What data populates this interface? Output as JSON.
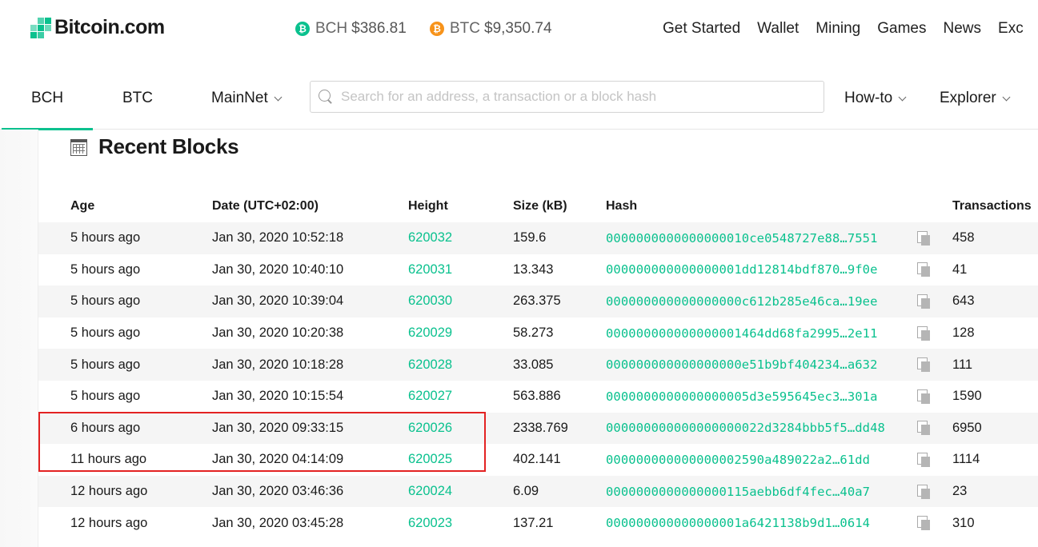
{
  "brand": {
    "name": "Bitcoin.com",
    "accent": "#0ac18e"
  },
  "prices": [
    {
      "symbol": "BCH",
      "value": "$386.81",
      "color": "#0ac18e",
      "glyph": "₿"
    },
    {
      "symbol": "BTC",
      "value": "$9,350.74",
      "color": "#f7931a",
      "glyph": "₿"
    }
  ],
  "topnav": [
    "Get Started",
    "Wallet",
    "Mining",
    "Games",
    "News",
    "Exc"
  ],
  "subnav": {
    "tabs": [
      "BCH",
      "BTC"
    ],
    "network": "MainNet",
    "search_placeholder": "Search for an address, a transaction or a block hash",
    "menus": [
      "How-to",
      "Explorer"
    ]
  },
  "page": {
    "title": "Recent Blocks"
  },
  "table": {
    "headers": {
      "age": "Age",
      "date": "Date (UTC+02:00)",
      "height": "Height",
      "size": "Size (kB)",
      "hash": "Hash",
      "tx": "Transactions"
    },
    "rows": [
      {
        "age": "5 hours ago",
        "date": "Jan 30, 2020 10:52:18",
        "height": "620032",
        "size": "159.6",
        "hash": "0000000000000000010ce0548727e88…7551",
        "tx": "458"
      },
      {
        "age": "5 hours ago",
        "date": "Jan 30, 2020 10:40:10",
        "height": "620031",
        "size": "13.343",
        "hash": "000000000000000001dd12814bdf870…9f0e",
        "tx": "41"
      },
      {
        "age": "5 hours ago",
        "date": "Jan 30, 2020 10:39:04",
        "height": "620030",
        "size": "263.375",
        "hash": "000000000000000000c612b285e46ca…19ee",
        "tx": "643"
      },
      {
        "age": "5 hours ago",
        "date": "Jan 30, 2020 10:20:38",
        "height": "620029",
        "size": "58.273",
        "hash": "000000000000000001464dd68fa2995…2e11",
        "tx": "128"
      },
      {
        "age": "5 hours ago",
        "date": "Jan 30, 2020 10:18:28",
        "height": "620028",
        "size": "33.085",
        "hash": "000000000000000000e51b9bf404234…a632",
        "tx": "111"
      },
      {
        "age": "5 hours ago",
        "date": "Jan 30, 2020 10:15:54",
        "height": "620027",
        "size": "563.886",
        "hash": "0000000000000000005d3e595645ec3…301a",
        "tx": "1590"
      },
      {
        "age": "6 hours ago",
        "date": "Jan 30, 2020 09:33:15",
        "height": "620026",
        "size": "2338.769",
        "hash": "000000000000000000022d3284bbb5f5…dd48",
        "tx": "6950"
      },
      {
        "age": "11 hours ago",
        "date": "Jan 30, 2020 04:14:09",
        "height": "620025",
        "size": "402.141",
        "hash": "000000000000000002590a489022a2…61dd",
        "tx": "1114"
      },
      {
        "age": "12 hours ago",
        "date": "Jan 30, 2020 03:46:36",
        "height": "620024",
        "size": "6.09",
        "hash": "0000000000000000115aebb6df4fec…40a7",
        "tx": "23"
      },
      {
        "age": "12 hours ago",
        "date": "Jan 30, 2020 03:45:28",
        "height": "620023",
        "size": "137.21",
        "hash": "000000000000000001a6421138b9d1…0614",
        "tx": "310"
      }
    ]
  }
}
